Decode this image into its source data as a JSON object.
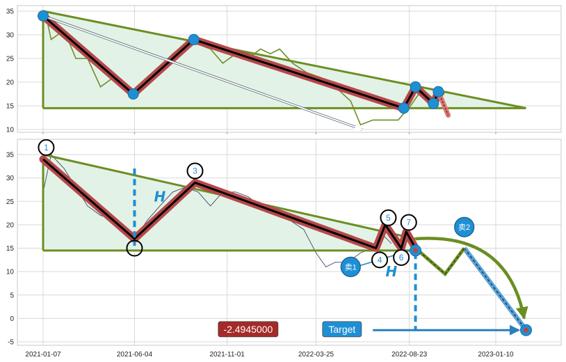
{
  "chart_data": [
    {
      "type": "line",
      "y_ticks": [
        10,
        15,
        20,
        25,
        30,
        35
      ],
      "ylim": [
        9,
        36
      ],
      "date_range": [
        "2021-01-07",
        "2023-01-10"
      ],
      "grid": true,
      "series": [
        {
          "role": "price",
          "color": "#6b8e23",
          "points": [
            [
              "2021-01-10",
              35
            ],
            [
              "2021-01-20",
              29
            ],
            [
              "2021-02-10",
              31
            ],
            [
              "2021-03-01",
              25
            ],
            [
              "2021-03-20",
              25
            ],
            [
              "2021-04-10",
              19
            ],
            [
              "2021-05-01",
              21
            ],
            [
              "2021-05-20",
              19
            ],
            [
              "2021-06-05",
              17
            ],
            [
              "2021-06-25",
              20
            ],
            [
              "2021-07-15",
              23
            ],
            [
              "2021-08-05",
              26
            ],
            [
              "2021-08-25",
              28
            ],
            [
              "2021-09-15",
              28
            ],
            [
              "2021-10-05",
              27
            ],
            [
              "2021-10-25",
              24
            ],
            [
              "2021-11-15",
              26
            ],
            [
              "2021-12-05",
              25
            ],
            [
              "2021-12-25",
              27
            ],
            [
              "2022-01-10",
              26
            ],
            [
              "2022-01-25",
              27
            ],
            [
              "2022-02-15",
              24
            ],
            [
              "2022-03-10",
              22
            ],
            [
              "2022-04-01",
              21
            ],
            [
              "2022-04-25",
              19
            ],
            [
              "2022-05-20",
              16
            ],
            [
              "2022-06-05",
              11
            ],
            [
              "2022-06-25",
              12
            ],
            [
              "2022-07-15",
              12
            ],
            [
              "2022-08-05",
              12
            ],
            [
              "2022-08-25",
              15
            ],
            [
              "2022-09-10",
              18
            ],
            [
              "2022-09-25",
              15
            ],
            [
              "2022-10-10",
              16
            ],
            [
              "2022-10-20",
              18
            ]
          ]
        },
        {
          "role": "zigzag",
          "color": "#000000",
          "points": [
            [
              "2021-01-07",
              34
            ],
            [
              "2021-06-02",
              17.5
            ],
            [
              "2021-09-08",
              29
            ],
            [
              "2022-08-14",
              14.5
            ],
            [
              "2022-09-02",
              19
            ],
            [
              "2022-10-01",
              15.5
            ],
            [
              "2022-10-09",
              18
            ]
          ]
        },
        {
          "role": "extension",
          "color": "#c0504d",
          "points": [
            [
              "2022-10-09",
              18
            ],
            [
              "2022-10-25",
              13
            ]
          ]
        },
        {
          "role": "triangle-upper",
          "color": "#6b8e23",
          "points": [
            [
              "2021-01-07",
              35
            ],
            [
              "2023-02-28",
              14.5
            ]
          ]
        },
        {
          "role": "triangle-base",
          "color": "#6b8e23",
          "points": [
            [
              "2021-01-07",
              14.5
            ],
            [
              "2023-02-28",
              14.5
            ]
          ]
        }
      ],
      "pivot_markers": [
        [
          "2021-01-07",
          34
        ],
        [
          "2021-06-02",
          17.5
        ],
        [
          "2021-09-08",
          29
        ],
        [
          "2022-08-14",
          14.5
        ],
        [
          "2022-09-02",
          19
        ],
        [
          "2022-10-01",
          15.5
        ],
        [
          "2022-10-09",
          18
        ]
      ],
      "arrow": {
        "from": [
          "2021-01-07",
          34
        ],
        "to": [
          "2022-06-08",
          10
        ]
      }
    },
    {
      "type": "line",
      "y_ticks": [
        -5,
        0,
        5,
        10,
        15,
        20,
        25,
        30,
        35
      ],
      "ylim": [
        -6,
        38
      ],
      "x_ticks": [
        "2021-01-07",
        "2021-06-04",
        "2021-11-01",
        "2022-03-25",
        "2022-08-23",
        "2023-01-10"
      ],
      "grid": true,
      "series": [
        {
          "role": "price",
          "color": "#3c4a6b",
          "points": [
            [
              "2021-01-07",
              27
            ],
            [
              "2021-01-20",
              35
            ],
            [
              "2021-02-10",
              32
            ],
            [
              "2021-03-01",
              28
            ],
            [
              "2021-03-20",
              24
            ],
            [
              "2021-04-10",
              22
            ],
            [
              "2021-05-05",
              21
            ],
            [
              "2021-05-25",
              19
            ],
            [
              "2021-06-04",
              17
            ],
            [
              "2021-06-25",
              21
            ],
            [
              "2021-07-15",
              24
            ],
            [
              "2021-08-05",
              27
            ],
            [
              "2021-08-25",
              28
            ],
            [
              "2021-09-15",
              27
            ],
            [
              "2021-10-05",
              24
            ],
            [
              "2021-10-25",
              27
            ],
            [
              "2021-11-15",
              27
            ],
            [
              "2021-12-05",
              26
            ],
            [
              "2021-12-25",
              24
            ],
            [
              "2022-01-15",
              23
            ],
            [
              "2022-02-10",
              21
            ],
            [
              "2022-03-05",
              19
            ],
            [
              "2022-03-25",
              14
            ],
            [
              "2022-04-10",
              11
            ],
            [
              "2022-04-25",
              12
            ],
            [
              "2022-05-15",
              12
            ],
            [
              "2022-06-05",
              14
            ],
            [
              "2022-06-25",
              15
            ],
            [
              "2022-07-10",
              18
            ],
            [
              "2022-07-25",
              16
            ]
          ]
        },
        {
          "role": "zigzag",
          "color": "#000000",
          "points": [
            [
              "2021-01-07",
              34
            ],
            [
              "2021-06-04",
              17
            ],
            [
              "2021-09-10",
              29
            ],
            [
              "2022-06-30",
              15
            ],
            [
              "2022-07-15",
              20
            ],
            [
              "2022-08-10",
              15
            ],
            [
              "2022-08-18",
              18.5
            ],
            [
              "2022-09-02",
              15
            ]
          ]
        },
        {
          "role": "triangle-upper",
          "color": "#6b8e23",
          "points": [
            [
              "2021-01-07",
              35
            ],
            [
              "2022-09-02",
              17
            ]
          ]
        },
        {
          "role": "triangle-base",
          "color": "#6b8e23",
          "points": [
            [
              "2021-01-07",
              14.5
            ],
            [
              "2022-09-02",
              14.5
            ]
          ]
        },
        {
          "role": "forecast",
          "color": "#6b8e23",
          "points": [
            [
              "2022-09-02",
              15
            ],
            [
              "2022-10-20",
              9.5
            ],
            [
              "2022-11-20",
              15
            ]
          ]
        },
        {
          "role": "sell-path",
          "color": "#4a90c2",
          "points": [
            [
              "2022-11-20",
              15
            ],
            [
              "2023-02-28",
              -2.5
            ]
          ]
        },
        {
          "role": "projection-arc",
          "color": "#6b8e23",
          "points": [
            [
              "2022-09-02",
              17
            ],
            [
              "2022-12-15",
              14
            ],
            [
              "2023-02-25",
              0
            ]
          ]
        }
      ],
      "point_labels": [
        {
          "label": "1",
          "point": [
            "2021-01-12",
            36.5
          ]
        },
        {
          "label": "3",
          "point": [
            "2021-09-10",
            31.5
          ]
        },
        {
          "label": "4",
          "point": [
            "2022-07-06",
            12.5
          ]
        },
        {
          "label": "5",
          "point": [
            "2022-07-20",
            21.5
          ]
        },
        {
          "label": "6",
          "point": [
            "2022-08-10",
            13
          ]
        },
        {
          "label": "7",
          "point": [
            "2022-08-22",
            20.5
          ]
        }
      ],
      "blank_point_markers": [
        [
          "2021-06-04",
          15
        ]
      ],
      "sell_markers": [
        {
          "label": "卖1",
          "point": [
            "2022-05-20",
            11
          ]
        },
        {
          "label": "卖2",
          "point": [
            "2022-11-20",
            19.5
          ]
        }
      ],
      "dot_markers": [
        [
          "2022-09-02",
          14.5
        ],
        [
          "2023-02-28",
          -2.5
        ]
      ],
      "h_labels": [
        {
          "label": "H",
          "point": [
            "2021-07-15",
            26
          ]
        },
        {
          "label": "H",
          "point": [
            "2022-07-25",
            10
          ]
        }
      ],
      "measure_lines": [
        {
          "point": [
            "2021-06-04",
            32
          ],
          "to": [
            "2021-06-04",
            15.5
          ]
        },
        {
          "point": [
            "2022-09-02",
            14
          ],
          "to": [
            "2022-09-02",
            -2.5
          ]
        }
      ],
      "value_box": {
        "label": "-2.4945000",
        "color": "#a52a2a",
        "point": [
          "2021-12-05",
          -2.3
        ]
      },
      "target_box": {
        "label": "Target",
        "color": "#1f8fd4",
        "point": [
          "2022-05-06",
          -2.3
        ]
      },
      "target_arrow": {
        "from": [
          "2022-06-25",
          -2.5
        ],
        "to": [
          "2023-02-28",
          -2.5
        ]
      }
    }
  ]
}
